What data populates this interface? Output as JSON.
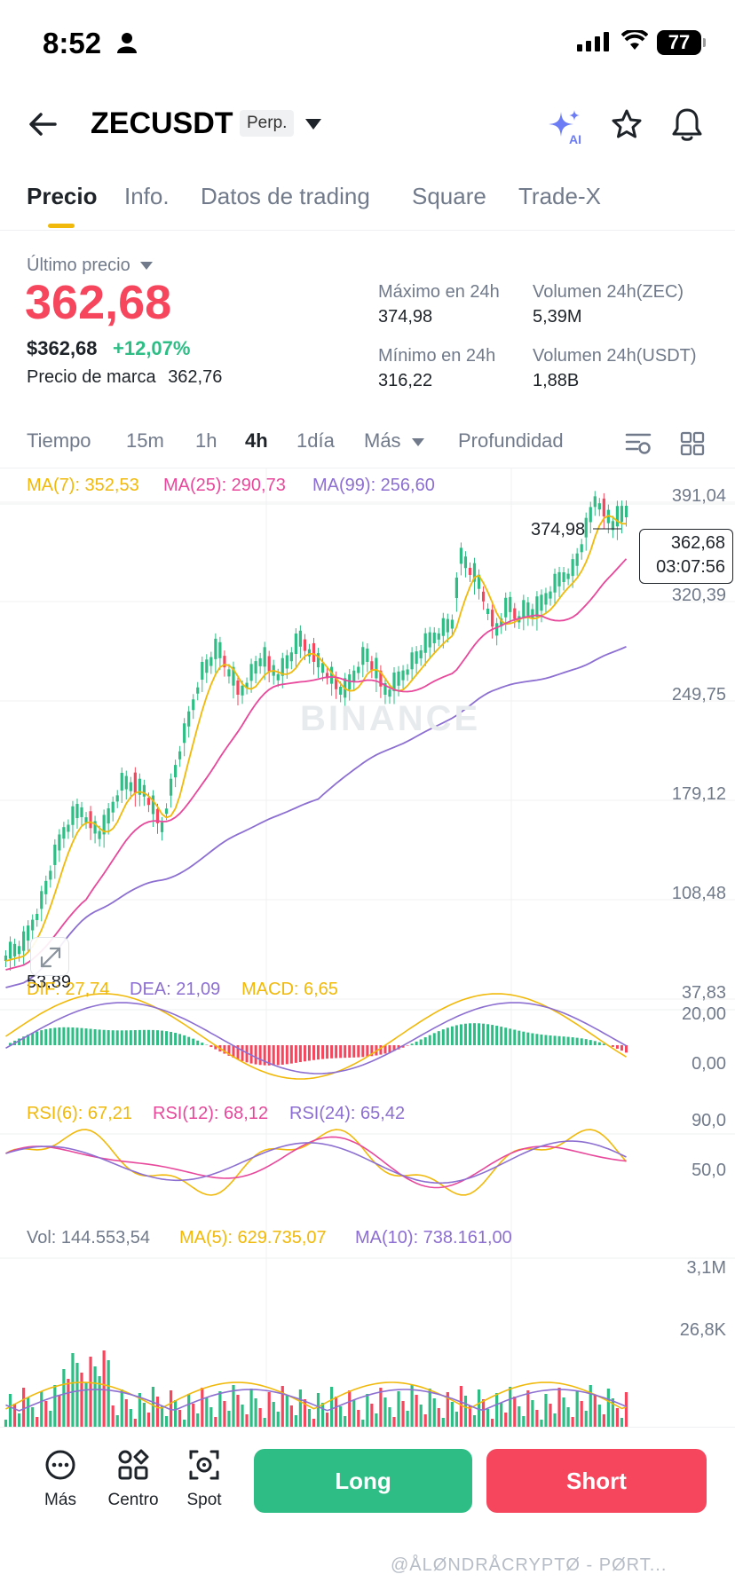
{
  "status_bar": {
    "time": "8:52",
    "battery": "77"
  },
  "header": {
    "symbol": "ZECUSDT",
    "badge": "Perp."
  },
  "tabs": [
    {
      "label": "Precio"
    },
    {
      "label": "Info."
    },
    {
      "label": "Datos de trading"
    },
    {
      "label": "Square"
    },
    {
      "label": "Trade-X"
    }
  ],
  "price": {
    "last_label": "Último precio",
    "last": "362,68",
    "usd": "$362,68",
    "change": "+12,07%",
    "mark_label": "Precio de marca",
    "mark_value": "362,76",
    "high_label": "Máximo en 24h",
    "high": "374,98",
    "low_label": "Mínimo en 24h",
    "low": "316,22",
    "vol_zec_label": "Volumen 24h(ZEC)",
    "vol_zec": "5,39M",
    "vol_usdt_label": "Volumen 24h(USDT)",
    "vol_usdt": "1,88B"
  },
  "intervals": {
    "time": "Tiempo",
    "m15": "15m",
    "h1": "1h",
    "h4": "4h",
    "d1": "1día",
    "more": "Más",
    "depth": "Profundidad"
  },
  "chart": {
    "ma7": "MA(7): 352,53",
    "ma25": "MA(25): 290,73",
    "ma99": "MA(99): 256,60",
    "y_axis": [
      "391,04",
      "320,39",
      "249,75",
      "179,12",
      "108,48",
      "37,83"
    ],
    "high_mark": "374,98",
    "low_mark": "53,89",
    "current_price": "362,68",
    "countdown": "03:07:56",
    "watermark": "BINANCE",
    "macd_dif": "DIF: 27,74",
    "macd_dea": "DEA: 21,09",
    "macd_val": "MACD: 6,65",
    "macd_axis": [
      "20,00",
      "0,00"
    ],
    "rsi6": "RSI(6): 67,21",
    "rsi12": "RSI(12): 68,12",
    "rsi24": "RSI(24): 65,42",
    "rsi_axis": [
      "90,0",
      "50,0"
    ],
    "vol": "Vol: 144.553,54",
    "vol_ma5": "MA(5): 629.735,07",
    "vol_ma10": "MA(10): 738.161,00",
    "vol_axis": [
      "3,1M",
      "26,8K"
    ],
    "colors": {
      "up": "#2ebd85",
      "down": "#f6465d",
      "ma7": "#f0b90b",
      "ma25": "#e8489b",
      "ma99": "#8c6fd1"
    }
  },
  "bottom": {
    "more": "Más",
    "center": "Centro",
    "spot": "Spot",
    "long": "Long",
    "short": "Short",
    "author": "@ÅLØNDRÅCRYPTØ - PØRT..."
  }
}
